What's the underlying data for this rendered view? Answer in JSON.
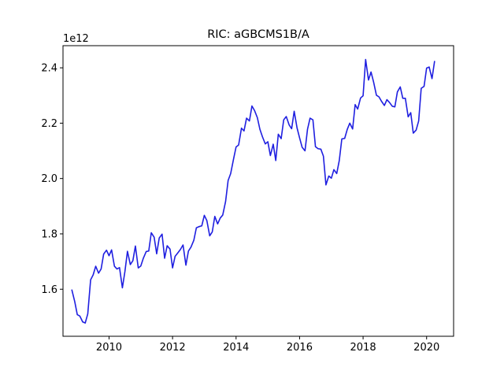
{
  "chart_data": {
    "type": "line",
    "title": "RIC: aGBCMS1B/A",
    "xlabel": "",
    "ylabel": "",
    "y_offset_label": "1e12",
    "xlim": [
      2008.55,
      2020.85
    ],
    "ylim": [
      1.43,
      2.48
    ],
    "xticks": [
      2010,
      2012,
      2014,
      2016,
      2018,
      2020
    ],
    "xtick_labels": [
      "2010",
      "2012",
      "2014",
      "2016",
      "2018",
      "2020"
    ],
    "yticks": [
      1.6,
      1.8,
      2.0,
      2.2,
      2.4
    ],
    "ytick_labels": [
      "1.6",
      "1.8",
      "2.0",
      "2.2",
      "2.4"
    ],
    "grid": false,
    "line_color": "#1f1fe0",
    "series": [
      {
        "x": [
          2008.83,
          2008.92,
          2009.0,
          2009.08,
          2009.17,
          2009.25,
          2009.33,
          2009.42,
          2009.5,
          2009.58,
          2009.67,
          2009.75,
          2009.83,
          2009.92,
          2010.0,
          2010.08,
          2010.17,
          2010.25,
          2010.33,
          2010.42,
          2010.5,
          2010.58,
          2010.67,
          2010.75,
          2010.83,
          2010.92,
          2011.0,
          2011.08,
          2011.17,
          2011.25,
          2011.33,
          2011.42,
          2011.5,
          2011.58,
          2011.67,
          2011.75,
          2011.83,
          2011.92,
          2012.0,
          2012.08,
          2012.17,
          2012.25,
          2012.33,
          2012.42,
          2012.5,
          2012.58,
          2012.67,
          2012.75,
          2012.83,
          2012.92,
          2013.0,
          2013.08,
          2013.17,
          2013.25,
          2013.33,
          2013.42,
          2013.5,
          2013.58,
          2013.67,
          2013.75,
          2013.83,
          2013.92,
          2014.0,
          2014.08,
          2014.17,
          2014.25,
          2014.33,
          2014.42,
          2014.5,
          2014.58,
          2014.67,
          2014.75,
          2014.83,
          2014.92,
          2015.0,
          2015.08,
          2015.17,
          2015.25,
          2015.33,
          2015.42,
          2015.5,
          2015.58,
          2015.67,
          2015.75,
          2015.83,
          2015.92,
          2016.0,
          2016.08,
          2016.17,
          2016.25,
          2016.33,
          2016.42,
          2016.5,
          2016.58,
          2016.67,
          2016.75,
          2016.83,
          2016.92,
          2017.0,
          2017.08,
          2017.17,
          2017.25,
          2017.33,
          2017.42,
          2017.5,
          2017.58,
          2017.67,
          2017.75,
          2017.83,
          2017.92,
          2018.0,
          2018.08,
          2018.17,
          2018.25,
          2018.33,
          2018.42,
          2018.5,
          2018.58,
          2018.67,
          2018.75,
          2018.83,
          2018.92,
          2019.0,
          2019.08,
          2019.17,
          2019.25,
          2019.33,
          2019.42,
          2019.5,
          2019.58,
          2019.67,
          2019.75,
          2019.83,
          2019.92,
          2020.0,
          2020.08,
          2020.17,
          2020.25
        ],
        "y": [
          1.597,
          1.555,
          1.508,
          1.503,
          1.482,
          1.478,
          1.511,
          1.634,
          1.652,
          1.683,
          1.658,
          1.673,
          1.727,
          1.741,
          1.721,
          1.742,
          1.683,
          1.673,
          1.678,
          1.605,
          1.664,
          1.737,
          1.689,
          1.703,
          1.756,
          1.677,
          1.684,
          1.712,
          1.736,
          1.738,
          1.804,
          1.788,
          1.728,
          1.785,
          1.799,
          1.712,
          1.757,
          1.745,
          1.677,
          1.719,
          1.732,
          1.744,
          1.76,
          1.687,
          1.738,
          1.752,
          1.777,
          1.822,
          1.826,
          1.829,
          1.867,
          1.848,
          1.793,
          1.807,
          1.863,
          1.836,
          1.857,
          1.868,
          1.917,
          1.993,
          2.018,
          2.07,
          2.114,
          2.121,
          2.182,
          2.172,
          2.218,
          2.208,
          2.262,
          2.246,
          2.22,
          2.178,
          2.151,
          2.125,
          2.133,
          2.083,
          2.124,
          2.065,
          2.16,
          2.144,
          2.212,
          2.224,
          2.194,
          2.18,
          2.243,
          2.183,
          2.147,
          2.113,
          2.1,
          2.178,
          2.218,
          2.212,
          2.115,
          2.108,
          2.106,
          2.081,
          1.977,
          2.009,
          2.001,
          2.032,
          2.018,
          2.065,
          2.143,
          2.145,
          2.177,
          2.2,
          2.179,
          2.267,
          2.251,
          2.291,
          2.299,
          2.43,
          2.356,
          2.385,
          2.349,
          2.301,
          2.295,
          2.279,
          2.264,
          2.285,
          2.275,
          2.261,
          2.259,
          2.313,
          2.331,
          2.29,
          2.29,
          2.223,
          2.238,
          2.164,
          2.175,
          2.208,
          2.326,
          2.333,
          2.399,
          2.403,
          2.361,
          2.423
        ]
      }
    ]
  }
}
